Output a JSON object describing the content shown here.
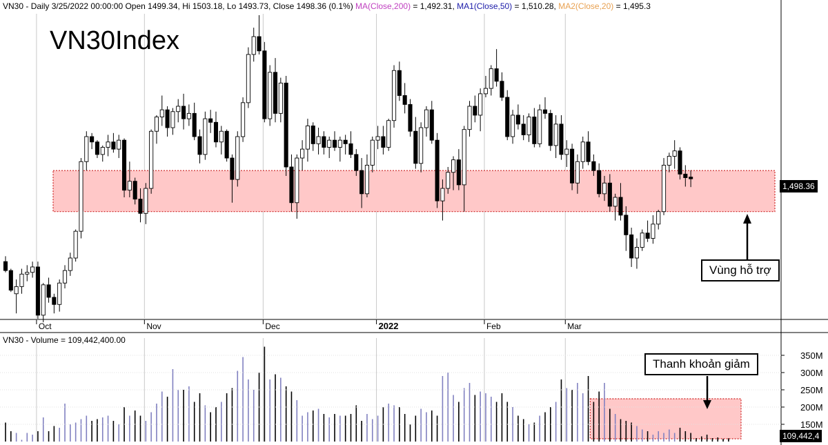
{
  "header": {
    "ticker": "VN30",
    "info": " - Daily 3/25/2022 00:00:00 Open 1499.34, Hi 1503.18, Lo 1493.73, Close 1498.36 (0.1%) ",
    "ma200_label": "MA(Close,200)",
    "ma200_value": " = 1,492.31, ",
    "ma50_label": "MA1(Close,50)",
    "ma50_value": " = 1,510.28, ",
    "ma20_label": "MA2(Close,20)",
    "ma20_value": " = 1,495.3"
  },
  "volume_header": "VN30 - Volume = 109,442,400.00",
  "title": "VN30Index",
  "price_tag": "1,498.36",
  "volume_tag": "109,442,4",
  "annotations": {
    "support_label": "Vùng hỗ trợ",
    "liquidity_label": "Thanh khoản giảm"
  },
  "colors": {
    "up": "#ffffff",
    "down": "#000000",
    "zone_fill": "#ffc8c8",
    "zone_border": "#cc2222",
    "grid": "#c8c8c8",
    "volume_up": "#8080c0",
    "volume_down": "#000000"
  },
  "chart_data": {
    "type": "candlestick",
    "x_tick_labels": [
      {
        "label": "Oct",
        "index": 6
      },
      {
        "label": "Nov",
        "index": 26
      },
      {
        "label": "Dec",
        "index": 48
      },
      {
        "label": "2022",
        "index": 69
      },
      {
        "label": "Feb",
        "index": 89
      },
      {
        "label": "Mar",
        "index": 104
      }
    ],
    "price_range": [
      1420,
      1590
    ],
    "support_zone": {
      "low": 1480,
      "high": 1503,
      "from_index": 0,
      "to_index": 136
    },
    "candles": [
      [
        1452,
        1455,
        1446,
        1447
      ],
      [
        1447,
        1448,
        1435,
        1436
      ],
      [
        1434,
        1442,
        1423,
        1438
      ],
      [
        1438,
        1448,
        1434,
        1445
      ],
      [
        1445,
        1450,
        1441,
        1446
      ],
      [
        1446,
        1452,
        1443,
        1449
      ],
      [
        1449,
        1452,
        1420,
        1422
      ],
      [
        1422,
        1440,
        1418,
        1439
      ],
      [
        1439,
        1443,
        1429,
        1432
      ],
      [
        1432,
        1434,
        1423,
        1428
      ],
      [
        1428,
        1442,
        1424,
        1440
      ],
      [
        1440,
        1450,
        1437,
        1447
      ],
      [
        1447,
        1457,
        1444,
        1454
      ],
      [
        1454,
        1470,
        1452,
        1469
      ],
      [
        1469,
        1510,
        1465,
        1508
      ],
      [
        1508,
        1525,
        1503,
        1522
      ],
      [
        1522,
        1524,
        1515,
        1519
      ],
      [
        1519,
        1520,
        1510,
        1512
      ],
      [
        1512,
        1517,
        1508,
        1516
      ],
      [
        1516,
        1523,
        1511,
        1519
      ],
      [
        1519,
        1524,
        1513,
        1515
      ],
      [
        1515,
        1523,
        1510,
        1520
      ],
      [
        1520,
        1521,
        1488,
        1492
      ],
      [
        1492,
        1508,
        1488,
        1497
      ],
      [
        1497,
        1499,
        1484,
        1487
      ],
      [
        1487,
        1493,
        1474,
        1479
      ],
      [
        1479,
        1496,
        1473,
        1493
      ],
      [
        1493,
        1526,
        1490,
        1525
      ],
      [
        1525,
        1534,
        1518,
        1533
      ],
      [
        1533,
        1545,
        1528,
        1537
      ],
      [
        1537,
        1539,
        1522,
        1527
      ],
      [
        1527,
        1538,
        1523,
        1536
      ],
      [
        1536,
        1543,
        1530,
        1539
      ],
      [
        1539,
        1546,
        1526,
        1532
      ],
      [
        1532,
        1540,
        1528,
        1535
      ],
      [
        1535,
        1541,
        1520,
        1522
      ],
      [
        1522,
        1526,
        1507,
        1512
      ],
      [
        1512,
        1536,
        1509,
        1532
      ],
      [
        1532,
        1537,
        1524,
        1530
      ],
      [
        1530,
        1536,
        1516,
        1519
      ],
      [
        1519,
        1528,
        1512,
        1525
      ],
      [
        1525,
        1526,
        1508,
        1510
      ],
      [
        1510,
        1512,
        1485,
        1498
      ],
      [
        1498,
        1525,
        1494,
        1522
      ],
      [
        1522,
        1544,
        1519,
        1541
      ],
      [
        1541,
        1572,
        1538,
        1568
      ],
      [
        1568,
        1583,
        1564,
        1578
      ],
      [
        1578,
        1590,
        1568,
        1570
      ],
      [
        1570,
        1575,
        1530,
        1532
      ],
      [
        1532,
        1562,
        1528,
        1558
      ],
      [
        1558,
        1566,
        1530,
        1535
      ],
      [
        1535,
        1555,
        1530,
        1552
      ],
      [
        1552,
        1556,
        1500,
        1505
      ],
      [
        1505,
        1512,
        1480,
        1485
      ],
      [
        1485,
        1512,
        1476,
        1510
      ],
      [
        1510,
        1520,
        1503,
        1515
      ],
      [
        1515,
        1532,
        1508,
        1528
      ],
      [
        1528,
        1530,
        1514,
        1518
      ],
      [
        1518,
        1527,
        1512,
        1522
      ],
      [
        1522,
        1525,
        1512,
        1516
      ],
      [
        1516,
        1522,
        1510,
        1520
      ],
      [
        1520,
        1525,
        1514,
        1516
      ],
      [
        1516,
        1522,
        1508,
        1520
      ],
      [
        1520,
        1523,
        1512,
        1518
      ],
      [
        1518,
        1525,
        1510,
        1512
      ],
      [
        1512,
        1515,
        1500,
        1503
      ],
      [
        1503,
        1510,
        1482,
        1490
      ],
      [
        1490,
        1512,
        1488,
        1506
      ],
      [
        1506,
        1522,
        1502,
        1520
      ],
      [
        1520,
        1528,
        1515,
        1522
      ],
      [
        1522,
        1528,
        1512,
        1516
      ],
      [
        1516,
        1532,
        1514,
        1531
      ],
      [
        1531,
        1562,
        1527,
        1559
      ],
      [
        1559,
        1564,
        1542,
        1545
      ],
      [
        1545,
        1552,
        1535,
        1540
      ],
      [
        1540,
        1543,
        1522,
        1525
      ],
      [
        1525,
        1533,
        1504,
        1507
      ],
      [
        1507,
        1530,
        1502,
        1527
      ],
      [
        1527,
        1539,
        1522,
        1537
      ],
      [
        1537,
        1542,
        1518,
        1520
      ],
      [
        1520,
        1524,
        1482,
        1486
      ],
      [
        1486,
        1498,
        1475,
        1493
      ],
      [
        1493,
        1505,
        1490,
        1502
      ],
      [
        1502,
        1511,
        1492,
        1509
      ],
      [
        1509,
        1515,
        1492,
        1495
      ],
      [
        1495,
        1528,
        1480,
        1526
      ],
      [
        1526,
        1542,
        1522,
        1539
      ],
      [
        1539,
        1545,
        1530,
        1534
      ],
      [
        1534,
        1549,
        1525,
        1546
      ],
      [
        1546,
        1556,
        1544,
        1549
      ],
      [
        1549,
        1562,
        1545,
        1560
      ],
      [
        1560,
        1571,
        1550,
        1553
      ],
      [
        1553,
        1558,
        1542,
        1544
      ],
      [
        1544,
        1548,
        1520,
        1522
      ],
      [
        1522,
        1537,
        1518,
        1534
      ],
      [
        1534,
        1540,
        1526,
        1529
      ],
      [
        1529,
        1534,
        1520,
        1523
      ],
      [
        1523,
        1535,
        1519,
        1533
      ],
      [
        1533,
        1538,
        1516,
        1518
      ],
      [
        1518,
        1540,
        1516,
        1537
      ],
      [
        1537,
        1544,
        1532,
        1535
      ],
      [
        1535,
        1537,
        1514,
        1517
      ],
      [
        1517,
        1534,
        1510,
        1529
      ],
      [
        1529,
        1534,
        1509,
        1512
      ],
      [
        1512,
        1520,
        1505,
        1515
      ],
      [
        1515,
        1518,
        1492,
        1496
      ],
      [
        1496,
        1512,
        1490,
        1508
      ],
      [
        1508,
        1522,
        1504,
        1519
      ],
      [
        1519,
        1525,
        1506,
        1508
      ],
      [
        1508,
        1512,
        1500,
        1503
      ],
      [
        1503,
        1507,
        1488,
        1490
      ],
      [
        1490,
        1500,
        1486,
        1496
      ],
      [
        1496,
        1501,
        1480,
        1483
      ],
      [
        1483,
        1490,
        1475,
        1488
      ],
      [
        1488,
        1496,
        1475,
        1478
      ],
      [
        1478,
        1483,
        1458,
        1467
      ],
      [
        1467,
        1471,
        1449,
        1454
      ],
      [
        1454,
        1465,
        1448,
        1460
      ],
      [
        1460,
        1470,
        1458,
        1468
      ],
      [
        1468,
        1475,
        1463,
        1465
      ],
      [
        1465,
        1478,
        1462,
        1473
      ],
      [
        1473,
        1481,
        1470,
        1480
      ],
      [
        1480,
        1510,
        1478,
        1506
      ],
      [
        1506,
        1513,
        1502,
        1511
      ],
      [
        1511,
        1520,
        1504,
        1514
      ],
      [
        1514,
        1516,
        1498,
        1501
      ],
      [
        1501,
        1506,
        1494,
        1499
      ],
      [
        1499.34,
        1503.18,
        1493.73,
        1498.36
      ]
    ],
    "volume": {
      "axis_labels": [
        "350M",
        "300M",
        "250M",
        "200M",
        "150M"
      ],
      "range": [
        100,
        380
      ],
      "values": [
        155,
        130,
        125,
        105,
        125,
        120,
        130,
        170,
        130,
        145,
        140,
        210,
        150,
        155,
        165,
        175,
        160,
        165,
        170,
        175,
        160,
        150,
        200,
        175,
        190,
        175,
        160,
        185,
        210,
        245,
        230,
        310,
        250,
        250,
        260,
        215,
        240,
        205,
        185,
        200,
        215,
        240,
        255,
        305,
        345,
        280,
        250,
        300,
        375,
        280,
        295,
        285,
        260,
        245,
        220,
        175,
        185,
        190,
        195,
        180,
        170,
        180,
        175,
        175,
        180,
        205,
        160,
        180,
        165,
        175,
        200,
        210,
        205,
        200,
        180,
        150,
        175,
        195,
        185,
        190,
        175,
        290,
        300,
        235,
        215,
        255,
        270,
        235,
        245,
        240,
        230,
        215,
        240,
        215,
        200,
        175,
        165,
        150,
        155,
        175,
        185,
        200,
        215,
        280,
        255,
        250,
        270,
        240,
        290,
        215,
        245,
        270,
        195,
        180,
        165,
        160,
        155,
        145,
        135,
        130,
        120,
        130,
        125,
        135,
        125,
        140,
        130,
        125,
        110,
        115,
        120,
        110,
        112,
        108,
        109.44
      ],
      "reduced_zone_from_index": 109
    }
  }
}
